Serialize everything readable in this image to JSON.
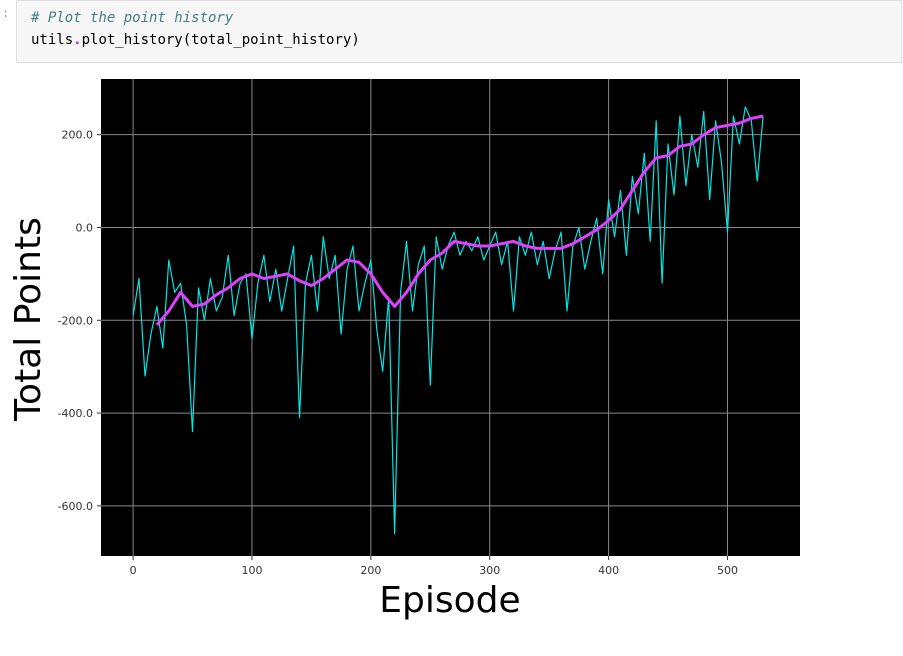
{
  "notebook": {
    "prompt_mark": ":",
    "code_comment": "# Plot the point history",
    "code_object": "utils",
    "code_dot": ".",
    "code_call": "plot_history(total_point_history)"
  },
  "colors": {
    "background": "#000000",
    "grid": "#888888",
    "raw_series": "#00e5e5",
    "moving_average": "#e040fb"
  },
  "chart_data": {
    "type": "line",
    "title": "",
    "xlabel": "Episode",
    "ylabel": "Total Points",
    "xlim": [
      -27,
      561
    ],
    "ylim": [
      -708,
      320
    ],
    "xticks": [
      0,
      100,
      200,
      300,
      400,
      500
    ],
    "yticks": [
      200,
      0,
      -200,
      -400,
      -600
    ],
    "xtick_labels": [
      "0",
      "100",
      "200",
      "300",
      "400",
      "500"
    ],
    "ytick_labels": [
      "200.0",
      "0.0",
      "-200.0",
      "-400.0",
      "-600.0"
    ],
    "grid": true,
    "series": [
      {
        "key": "raw",
        "style": "thin-line",
        "x": [
          0,
          5,
          10,
          15,
          20,
          25,
          30,
          35,
          40,
          45,
          50,
          55,
          60,
          65,
          70,
          75,
          80,
          85,
          90,
          95,
          100,
          105,
          110,
          115,
          120,
          125,
          130,
          135,
          140,
          145,
          150,
          155,
          160,
          165,
          170,
          175,
          180,
          185,
          190,
          195,
          200,
          205,
          210,
          215,
          220,
          225,
          230,
          235,
          240,
          245,
          250,
          255,
          260,
          265,
          270,
          275,
          280,
          285,
          290,
          295,
          300,
          305,
          310,
          315,
          320,
          325,
          330,
          335,
          340,
          345,
          350,
          355,
          360,
          365,
          370,
          375,
          380,
          385,
          390,
          395,
          400,
          405,
          410,
          415,
          420,
          425,
          430,
          435,
          440,
          445,
          450,
          455,
          460,
          465,
          470,
          475,
          480,
          485,
          490,
          495,
          500,
          505,
          510,
          515,
          520,
          525,
          530
        ],
        "y": [
          -190,
          -110,
          -320,
          -230,
          -170,
          -260,
          -70,
          -140,
          -120,
          -210,
          -440,
          -130,
          -200,
          -110,
          -180,
          -150,
          -60,
          -190,
          -120,
          -100,
          -240,
          -120,
          -60,
          -160,
          -90,
          -180,
          -110,
          -40,
          -410,
          -120,
          -60,
          -180,
          -20,
          -110,
          -60,
          -230,
          -90,
          -40,
          -180,
          -120,
          -70,
          -220,
          -310,
          -150,
          -660,
          -140,
          -30,
          -180,
          -80,
          -40,
          -340,
          -20,
          -90,
          -40,
          -10,
          -60,
          -30,
          -50,
          -20,
          -70,
          -40,
          -10,
          -80,
          -30,
          -180,
          -20,
          -60,
          -10,
          -80,
          -30,
          -110,
          -50,
          -10,
          -180,
          -40,
          0,
          -90,
          -30,
          20,
          -100,
          60,
          -20,
          80,
          -60,
          110,
          30,
          160,
          -30,
          230,
          -120,
          180,
          70,
          240,
          90,
          200,
          130,
          250,
          60,
          230,
          140,
          -10,
          240,
          180,
          260,
          230,
          100,
          240
        ]
      },
      {
        "key": "moving_average",
        "style": "thick-line",
        "x": [
          20,
          30,
          40,
          50,
          60,
          70,
          80,
          90,
          100,
          110,
          120,
          130,
          140,
          150,
          160,
          170,
          180,
          190,
          200,
          210,
          220,
          230,
          240,
          250,
          260,
          270,
          280,
          290,
          300,
          310,
          320,
          330,
          340,
          350,
          360,
          370,
          380,
          390,
          400,
          410,
          420,
          430,
          440,
          450,
          460,
          470,
          480,
          490,
          500,
          510,
          520,
          530
        ],
        "y": [
          -210,
          -180,
          -140,
          -170,
          -165,
          -145,
          -130,
          -110,
          -100,
          -110,
          -105,
          -100,
          -115,
          -125,
          -110,
          -90,
          -70,
          -75,
          -100,
          -140,
          -170,
          -140,
          -100,
          -70,
          -55,
          -30,
          -35,
          -40,
          -40,
          -35,
          -30,
          -40,
          -45,
          -45,
          -45,
          -35,
          -20,
          -5,
          15,
          40,
          80,
          120,
          150,
          155,
          175,
          180,
          200,
          215,
          220,
          225,
          235,
          240
        ]
      }
    ]
  }
}
